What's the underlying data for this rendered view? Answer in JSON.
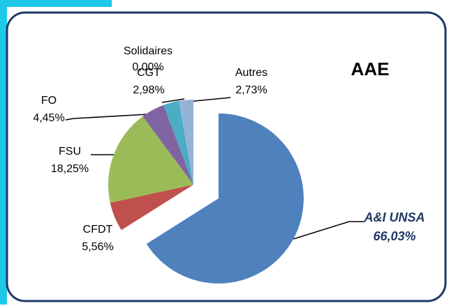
{
  "chart_data": {
    "type": "pie",
    "title": "AAE",
    "categories": [
      "A&I UNSA",
      "CFDT",
      "FSU",
      "FO",
      "CGT",
      "Solidaires",
      "Autres"
    ],
    "values": [
      66.03,
      5.56,
      18.25,
      4.45,
      2.98,
      0.0,
      2.73
    ],
    "value_labels": [
      "66,03%",
      "5,56%",
      "18,25%",
      "4,45%",
      "2,98%",
      "0,00%",
      "2,73%"
    ],
    "colors": [
      "#4f81bd",
      "#c0504d",
      "#9bbb59",
      "#8064a2",
      "#4bacc6",
      "#f79646",
      "#95b3d7"
    ]
  }
}
